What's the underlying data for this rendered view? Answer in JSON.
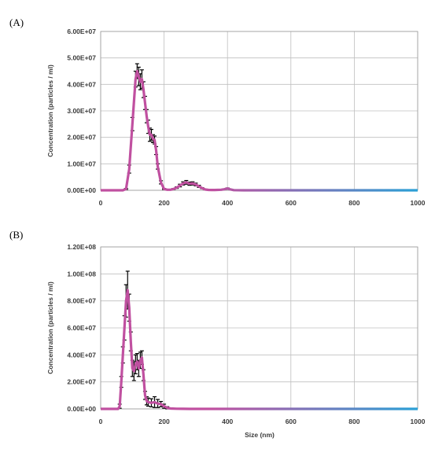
{
  "chart_data": [
    {
      "type": "line",
      "panel_label": "(A)",
      "xlabel": "",
      "ylabel": "Concentration (particles / ml)",
      "xlim": [
        0,
        1000
      ],
      "ylim": [
        0,
        60000000
      ],
      "x_ticks": [
        "0",
        "200",
        "400",
        "600",
        "800",
        "1000"
      ],
      "y_ticks": [
        "0.00E+00",
        "1.00E+07",
        "2.00E+07",
        "3.00E+07",
        "4.00E+07",
        "5.00E+07",
        "6.00E+07"
      ],
      "grid": true,
      "series": [
        {
          "x": [
            0,
            70,
            80,
            90,
            100,
            110,
            115,
            120,
            125,
            130,
            135,
            140,
            145,
            150,
            155,
            160,
            165,
            170,
            175,
            180,
            190,
            200,
            210,
            220,
            230,
            240,
            250,
            260,
            270,
            280,
            290,
            300,
            310,
            320,
            330,
            340,
            350,
            360,
            380,
            390,
            400,
            410,
            420,
            450,
            500,
            600,
            700,
            800,
            900,
            1000
          ],
          "y": [
            0,
            0,
            500000,
            8000000,
            25000000,
            42000000,
            45000000,
            43000000,
            41000000,
            42000000,
            38000000,
            33000000,
            28000000,
            24000000,
            21000000,
            21000000,
            19500000,
            19000000,
            15000000,
            9000000,
            3000000,
            500000,
            200000,
            200000,
            500000,
            1000000,
            1800000,
            2600000,
            3000000,
            2500000,
            2600000,
            2200000,
            1500000,
            800000,
            300000,
            150000,
            100000,
            100000,
            200000,
            400000,
            700000,
            300000,
            50000,
            0,
            0,
            0,
            0,
            0,
            0,
            0
          ],
          "err": [
            0,
            0,
            200000,
            1500000,
            2500000,
            3000000,
            2800000,
            3500000,
            3000000,
            3500000,
            3000000,
            2500000,
            2500000,
            2500000,
            2500000,
            2000000,
            1500000,
            1500000,
            1500000,
            1000000,
            600000,
            200000,
            100000,
            100000,
            200000,
            300000,
            500000,
            600000,
            700000,
            600000,
            600000,
            500000,
            400000,
            200000,
            100000,
            50000,
            30000,
            30000,
            60000,
            120000,
            200000,
            100000,
            20000,
            0,
            0,
            0,
            0,
            0,
            0,
            0
          ],
          "color_start": "#c050a0",
          "color_end": "#2aa0d6",
          "error_color": "#000000"
        }
      ]
    },
    {
      "type": "line",
      "panel_label": "(B)",
      "xlabel": "Size (nm)",
      "ylabel": "Concentration (particles / ml)",
      "xlim": [
        0,
        1000
      ],
      "ylim": [
        0,
        120000000
      ],
      "x_ticks": [
        "0",
        "200",
        "400",
        "600",
        "800",
        "1000"
      ],
      "y_ticks": [
        "0.00E+00",
        "2.00E+07",
        "4.00E+07",
        "6.00E+07",
        "8.00E+07",
        "1.00E+08",
        "1.20E+08"
      ],
      "grid": true,
      "series": [
        {
          "x": [
            0,
            50,
            55,
            60,
            65,
            70,
            75,
            80,
            85,
            90,
            95,
            100,
            105,
            110,
            115,
            120,
            125,
            130,
            135,
            140,
            145,
            150,
            160,
            170,
            180,
            190,
            200,
            210,
            220,
            240,
            260,
            280,
            300,
            350,
            400,
            500,
            600,
            700,
            800,
            900,
            1000
          ],
          "y": [
            0,
            0,
            0,
            2000000,
            20000000,
            40000000,
            60000000,
            80000000,
            88000000,
            75000000,
            50000000,
            30000000,
            28000000,
            33000000,
            35000000,
            30000000,
            36000000,
            38000000,
            25000000,
            10000000,
            6000000,
            5000000,
            4500000,
            5000000,
            4000000,
            3500000,
            2000000,
            800000,
            300000,
            100000,
            50000,
            20000,
            0,
            0,
            0,
            0,
            0,
            0,
            0,
            0,
            0
          ],
          "err": [
            0,
            0,
            0,
            1500000,
            4000000,
            6000000,
            9000000,
            12000000,
            14000000,
            10000000,
            7000000,
            6000000,
            7000000,
            7000000,
            6000000,
            6000000,
            6000000,
            5000000,
            4000000,
            3000000,
            3000000,
            3000000,
            3000000,
            4000000,
            3000000,
            2000000,
            1500000,
            800000,
            300000,
            100000,
            50000,
            20000,
            0,
            0,
            0,
            0,
            0,
            0,
            0,
            0,
            0
          ],
          "color_start": "#c050a0",
          "color_end": "#2aa0d6",
          "error_color": "#000000"
        }
      ]
    }
  ]
}
